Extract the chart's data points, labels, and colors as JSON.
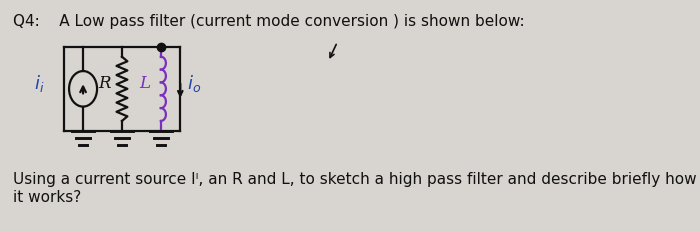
{
  "background_color": "#d8d4cf",
  "title_line1": "Q4:    A Low pass filter (current mode conversion ) is shown below:",
  "bottom_line1": "Using a current source Iᴵ, an R and L, to sketch a high pass filter and describe briefly how",
  "bottom_line2": "it works?",
  "title_fontsize": 11.0,
  "body_fontsize": 11.0,
  "text_color": "#111111",
  "wire_color": "#111111",
  "resistor_color": "#111111",
  "inductor_color": "#7B2FBE",
  "cursor_arrow_color": "#111111"
}
